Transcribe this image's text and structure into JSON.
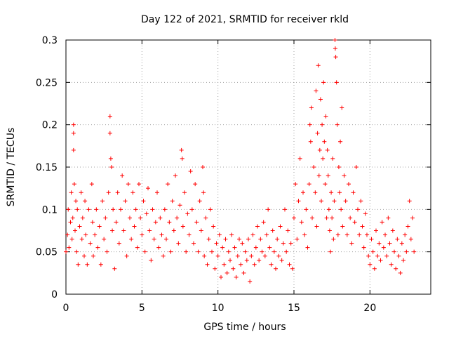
{
  "chart_data": {
    "type": "scatter",
    "title": "Day 122 of 2021, SRMTID for receiver rkld",
    "xlabel": "GPS time / hours",
    "ylabel": "SRMTID / TECUs",
    "xlim": [
      0,
      24
    ],
    "ylim": [
      0,
      0.3
    ],
    "xticks": [
      0,
      5,
      10,
      15,
      20
    ],
    "xtick_labels": [
      "0",
      "5",
      "10",
      "15",
      "20"
    ],
    "yticks": [
      0,
      0.05,
      0.1,
      0.15,
      0.2,
      0.25,
      0.3
    ],
    "ytick_labels": [
      "0",
      "0.05",
      "0.1",
      "0.15",
      "0.2",
      "0.25",
      "0.3"
    ],
    "grid": true,
    "marker": "+",
    "color": "#ff0000",
    "series": [
      {
        "name": "SRMTID",
        "points": [
          [
            0.0,
            0.05
          ],
          [
            0.1,
            0.07
          ],
          [
            0.15,
            0.1
          ],
          [
            0.2,
            0.055
          ],
          [
            0.3,
            0.085
          ],
          [
            0.35,
            0.12
          ],
          [
            0.4,
            0.065
          ],
          [
            0.45,
            0.09
          ],
          [
            0.5,
            0.2
          ],
          [
            0.5,
            0.19
          ],
          [
            0.5,
            0.17
          ],
          [
            0.55,
            0.13
          ],
          [
            0.6,
            0.075
          ],
          [
            0.65,
            0.11
          ],
          [
            0.7,
            0.05
          ],
          [
            0.75,
            0.1
          ],
          [
            0.8,
            0.035
          ],
          [
            0.9,
            0.08
          ],
          [
            1.0,
            0.12
          ],
          [
            1.05,
            0.065
          ],
          [
            1.1,
            0.09
          ],
          [
            1.2,
            0.045
          ],
          [
            1.25,
            0.11
          ],
          [
            1.3,
            0.07
          ],
          [
            1.4,
            0.035
          ],
          [
            1.5,
            0.1
          ],
          [
            1.6,
            0.06
          ],
          [
            1.7,
            0.13
          ],
          [
            1.75,
            0.085
          ],
          [
            1.8,
            0.045
          ],
          [
            1.9,
            0.07
          ],
          [
            2.0,
            0.1
          ],
          [
            2.1,
            0.055
          ],
          [
            2.2,
            0.08
          ],
          [
            2.3,
            0.035
          ],
          [
            2.4,
            0.11
          ],
          [
            2.5,
            0.065
          ],
          [
            2.6,
            0.09
          ],
          [
            2.7,
            0.05
          ],
          [
            2.8,
            0.12
          ],
          [
            2.9,
            0.21
          ],
          [
            2.9,
            0.19
          ],
          [
            2.95,
            0.16
          ],
          [
            3.0,
            0.15
          ],
          [
            3.05,
            0.075
          ],
          [
            3.1,
            0.1
          ],
          [
            3.2,
            0.03
          ],
          [
            3.3,
            0.085
          ],
          [
            3.4,
            0.12
          ],
          [
            3.5,
            0.06
          ],
          [
            3.6,
            0.1
          ],
          [
            3.7,
            0.14
          ],
          [
            3.8,
            0.075
          ],
          [
            3.9,
            0.11
          ],
          [
            4.0,
            0.045
          ],
          [
            4.1,
            0.13
          ],
          [
            4.2,
            0.09
          ],
          [
            4.3,
            0.065
          ],
          [
            4.4,
            0.12
          ],
          [
            4.5,
            0.08
          ],
          [
            4.6,
            0.1
          ],
          [
            4.7,
            0.055
          ],
          [
            4.8,
            0.13
          ],
          [
            4.9,
            0.09
          ],
          [
            5.0,
            0.07
          ],
          [
            5.1,
            0.11
          ],
          [
            5.2,
            0.05
          ],
          [
            5.3,
            0.095
          ],
          [
            5.4,
            0.125
          ],
          [
            5.5,
            0.075
          ],
          [
            5.6,
            0.04
          ],
          [
            5.7,
            0.1
          ],
          [
            5.8,
            0.065
          ],
          [
            5.9,
            0.085
          ],
          [
            6.0,
            0.12
          ],
          [
            6.1,
            0.055
          ],
          [
            6.2,
            0.09
          ],
          [
            6.3,
            0.07
          ],
          [
            6.4,
            0.045
          ],
          [
            6.5,
            0.1
          ],
          [
            6.6,
            0.065
          ],
          [
            6.7,
            0.13
          ],
          [
            6.8,
            0.085
          ],
          [
            6.9,
            0.05
          ],
          [
            7.0,
            0.11
          ],
          [
            7.1,
            0.075
          ],
          [
            7.2,
            0.14
          ],
          [
            7.3,
            0.09
          ],
          [
            7.4,
            0.06
          ],
          [
            7.5,
            0.105
          ],
          [
            7.6,
            0.17
          ],
          [
            7.65,
            0.16
          ],
          [
            7.7,
            0.08
          ],
          [
            7.8,
            0.12
          ],
          [
            7.9,
            0.05
          ],
          [
            8.0,
            0.095
          ],
          [
            8.1,
            0.07
          ],
          [
            8.2,
            0.145
          ],
          [
            8.3,
            0.1
          ],
          [
            8.4,
            0.06
          ],
          [
            8.5,
            0.13
          ],
          [
            8.6,
            0.085
          ],
          [
            8.7,
            0.05
          ],
          [
            8.8,
            0.11
          ],
          [
            8.9,
            0.075
          ],
          [
            9.0,
            0.15
          ],
          [
            9.05,
            0.12
          ],
          [
            9.1,
            0.045
          ],
          [
            9.2,
            0.09
          ],
          [
            9.3,
            0.035
          ],
          [
            9.4,
            0.065
          ],
          [
            9.5,
            0.1
          ],
          [
            9.6,
            0.05
          ],
          [
            9.7,
            0.08
          ],
          [
            9.8,
            0.03
          ],
          [
            9.9,
            0.06
          ],
          [
            10.0,
            0.045
          ],
          [
            10.1,
            0.07
          ],
          [
            10.2,
            0.02
          ],
          [
            10.3,
            0.055
          ],
          [
            10.4,
            0.035
          ],
          [
            10.5,
            0.065
          ],
          [
            10.6,
            0.025
          ],
          [
            10.7,
            0.05
          ],
          [
            10.8,
            0.04
          ],
          [
            10.9,
            0.07
          ],
          [
            11.0,
            0.03
          ],
          [
            11.1,
            0.055
          ],
          [
            11.2,
            0.02
          ],
          [
            11.3,
            0.045
          ],
          [
            11.4,
            0.065
          ],
          [
            11.5,
            0.035
          ],
          [
            11.6,
            0.06
          ],
          [
            11.7,
            0.025
          ],
          [
            11.8,
            0.05
          ],
          [
            11.9,
            0.04
          ],
          [
            12.0,
            0.065
          ],
          [
            12.1,
            0.015
          ],
          [
            12.2,
            0.045
          ],
          [
            12.3,
            0.07
          ],
          [
            12.4,
            0.035
          ],
          [
            12.5,
            0.055
          ],
          [
            12.6,
            0.08
          ],
          [
            12.7,
            0.04
          ],
          [
            12.8,
            0.065
          ],
          [
            12.9,
            0.05
          ],
          [
            13.0,
            0.085
          ],
          [
            13.1,
            0.045
          ],
          [
            13.2,
            0.07
          ],
          [
            13.3,
            0.1
          ],
          [
            13.4,
            0.055
          ],
          [
            13.5,
            0.035
          ],
          [
            13.6,
            0.075
          ],
          [
            13.7,
            0.05
          ],
          [
            13.8,
            0.03
          ],
          [
            13.9,
            0.065
          ],
          [
            14.0,
            0.045
          ],
          [
            14.1,
            0.08
          ],
          [
            14.2,
            0.04
          ],
          [
            14.3,
            0.06
          ],
          [
            14.4,
            0.1
          ],
          [
            14.5,
            0.05
          ],
          [
            14.6,
            0.075
          ],
          [
            14.7,
            0.035
          ],
          [
            14.8,
            0.06
          ],
          [
            14.9,
            0.03
          ],
          [
            15.0,
            0.09
          ],
          [
            15.1,
            0.13
          ],
          [
            15.2,
            0.065
          ],
          [
            15.3,
            0.11
          ],
          [
            15.4,
            0.16
          ],
          [
            15.5,
            0.085
          ],
          [
            15.6,
            0.12
          ],
          [
            15.7,
            0.07
          ],
          [
            15.8,
            0.1
          ],
          [
            15.9,
            0.055
          ],
          [
            16.0,
            0.13
          ],
          [
            16.05,
            0.2
          ],
          [
            16.1,
            0.18
          ],
          [
            16.15,
            0.22
          ],
          [
            16.2,
            0.09
          ],
          [
            16.3,
            0.15
          ],
          [
            16.4,
            0.12
          ],
          [
            16.45,
            0.24
          ],
          [
            16.5,
            0.08
          ],
          [
            16.55,
            0.19
          ],
          [
            16.6,
            0.27
          ],
          [
            16.65,
            0.14
          ],
          [
            16.7,
            0.17
          ],
          [
            16.75,
            0.23
          ],
          [
            16.8,
            0.11
          ],
          [
            16.85,
            0.2
          ],
          [
            16.9,
            0.16
          ],
          [
            16.95,
            0.25
          ],
          [
            17.0,
            0.18
          ],
          [
            17.05,
            0.13
          ],
          [
            17.1,
            0.21
          ],
          [
            17.15,
            0.09
          ],
          [
            17.2,
            0.17
          ],
          [
            17.25,
            0.14
          ],
          [
            17.3,
            0.1
          ],
          [
            17.35,
            0.075
          ],
          [
            17.4,
            0.05
          ],
          [
            17.45,
            0.12
          ],
          [
            17.5,
            0.09
          ],
          [
            17.55,
            0.16
          ],
          [
            17.6,
            0.065
          ],
          [
            17.65,
            0.11
          ],
          [
            17.7,
            0.3
          ],
          [
            17.72,
            0.29
          ],
          [
            17.75,
            0.28
          ],
          [
            17.8,
            0.25
          ],
          [
            17.85,
            0.2
          ],
          [
            17.9,
            0.07
          ],
          [
            17.95,
            0.15
          ],
          [
            18.0,
            0.12
          ],
          [
            18.05,
            0.18
          ],
          [
            18.1,
            0.1
          ],
          [
            18.15,
            0.22
          ],
          [
            18.2,
            0.08
          ],
          [
            18.3,
            0.14
          ],
          [
            18.4,
            0.11
          ],
          [
            18.5,
            0.07
          ],
          [
            18.6,
            0.13
          ],
          [
            18.7,
            0.09
          ],
          [
            18.8,
            0.06
          ],
          [
            18.9,
            0.12
          ],
          [
            19.0,
            0.085
          ],
          [
            19.1,
            0.15
          ],
          [
            19.2,
            0.1
          ],
          [
            19.3,
            0.07
          ],
          [
            19.4,
            0.11
          ],
          [
            19.5,
            0.08
          ],
          [
            19.6,
            0.055
          ],
          [
            19.7,
            0.095
          ],
          [
            19.8,
            0.07
          ],
          [
            19.9,
            0.045
          ],
          [
            20.0,
            0.035
          ],
          [
            20.1,
            0.065
          ],
          [
            20.2,
            0.05
          ],
          [
            20.3,
            0.03
          ],
          [
            20.4,
            0.075
          ],
          [
            20.5,
            0.045
          ],
          [
            20.6,
            0.06
          ],
          [
            20.7,
            0.04
          ],
          [
            20.8,
            0.085
          ],
          [
            20.9,
            0.055
          ],
          [
            21.0,
            0.07
          ],
          [
            21.1,
            0.045
          ],
          [
            21.2,
            0.09
          ],
          [
            21.3,
            0.06
          ],
          [
            21.4,
            0.035
          ],
          [
            21.5,
            0.075
          ],
          [
            21.6,
            0.05
          ],
          [
            21.7,
            0.03
          ],
          [
            21.8,
            0.065
          ],
          [
            21.9,
            0.045
          ],
          [
            22.0,
            0.025
          ],
          [
            22.1,
            0.06
          ],
          [
            22.2,
            0.04
          ],
          [
            22.3,
            0.07
          ],
          [
            22.4,
            0.05
          ],
          [
            22.5,
            0.08
          ],
          [
            22.6,
            0.11
          ],
          [
            22.7,
            0.065
          ],
          [
            22.8,
            0.09
          ],
          [
            22.9,
            0.05
          ]
        ]
      }
    ]
  }
}
